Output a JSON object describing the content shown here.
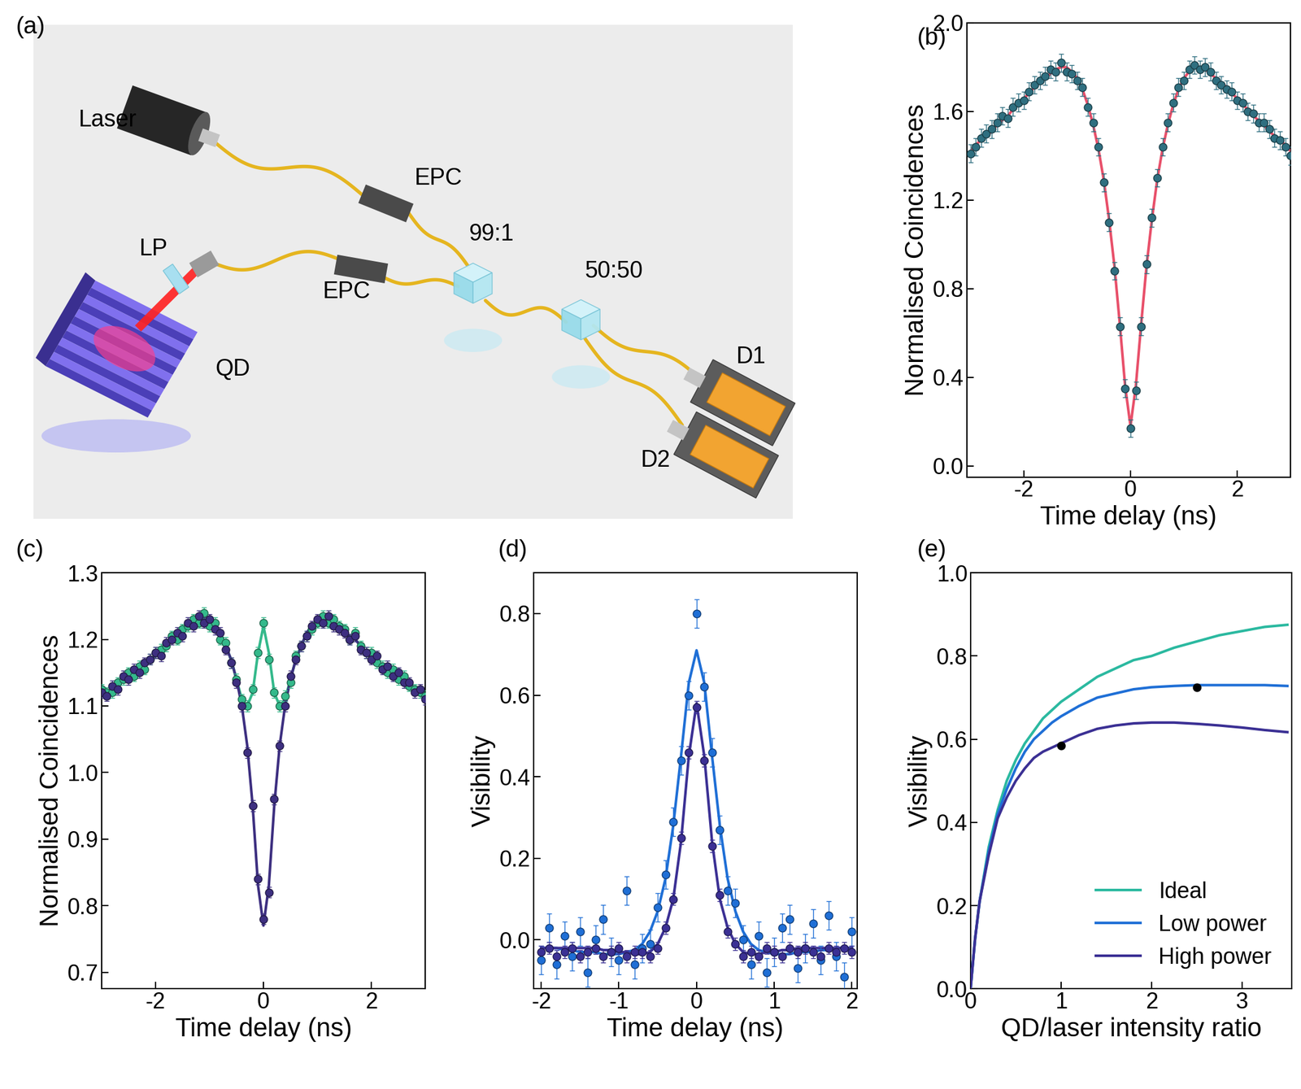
{
  "diagram": {
    "title": "(a)",
    "nodes": [
      {
        "label": "Laser"
      },
      {
        "label": "EPC"
      },
      {
        "label": "EPC"
      },
      {
        "label": "99:1"
      },
      {
        "label": "50:50"
      },
      {
        "label": "D1"
      },
      {
        "label": "D2"
      },
      {
        "label": "LP"
      },
      {
        "label": "QD"
      }
    ]
  },
  "chart_data": [
    {
      "type": "scatter",
      "title": "(b)",
      "x_label": "Time delay (ns)",
      "y_label": "Normalised Coincidences",
      "xlim": [
        -3.07,
        3.0
      ],
      "xticks": [
        -2,
        0,
        2
      ],
      "ylim": [
        -0.05,
        2.0
      ],
      "yticks": [
        0.0,
        0.4,
        0.8,
        1.2,
        1.6,
        2.0
      ],
      "grid": false,
      "x": [
        -3.0,
        -2.9,
        -2.8,
        -2.7,
        -2.6,
        -2.5,
        -2.4,
        -2.3,
        -2.2,
        -2.1,
        -2.0,
        -1.9,
        -1.8,
        -1.7,
        -1.6,
        -1.5,
        -1.4,
        -1.3,
        -1.2,
        -1.1,
        -1.0,
        -0.9,
        -0.8,
        -0.7,
        -0.6,
        -0.5,
        -0.4,
        -0.3,
        -0.2,
        -0.1,
        0.0,
        0.1,
        0.2,
        0.3,
        0.4,
        0.5,
        0.6,
        0.7,
        0.8,
        0.9,
        1.0,
        1.1,
        1.2,
        1.3,
        1.4,
        1.5,
        1.6,
        1.7,
        1.8,
        1.9,
        2.0,
        2.1,
        2.2,
        2.3,
        2.4,
        2.5,
        2.6,
        2.7,
        2.8,
        2.9,
        3.0
      ],
      "series": [
        {
          "type": "scatter",
          "color": "#2f6f80",
          "marker": "o",
          "error": 0.04,
          "values": [
            1.41,
            1.44,
            1.48,
            1.5,
            1.52,
            1.55,
            1.58,
            1.57,
            1.62,
            1.64,
            1.65,
            1.69,
            1.72,
            1.74,
            1.76,
            1.79,
            1.78,
            1.82,
            1.78,
            1.77,
            1.74,
            1.71,
            1.62,
            1.55,
            1.44,
            1.28,
            1.1,
            0.88,
            0.63,
            0.35,
            0.17,
            0.34,
            0.63,
            0.91,
            1.12,
            1.3,
            1.44,
            1.55,
            1.64,
            1.71,
            1.74,
            1.79,
            1.81,
            1.79,
            1.8,
            1.78,
            1.74,
            1.72,
            1.7,
            1.69,
            1.65,
            1.64,
            1.6,
            1.59,
            1.55,
            1.55,
            1.52,
            1.48,
            1.47,
            1.44,
            1.4
          ]
        },
        {
          "type": "line",
          "color": "#e8506a",
          "line_style": "solid",
          "values": [
            1.42,
            1.45,
            1.47,
            1.49,
            1.51,
            1.54,
            1.56,
            1.58,
            1.61,
            1.63,
            1.66,
            1.68,
            1.71,
            1.73,
            1.75,
            1.77,
            1.79,
            1.8,
            1.8,
            1.78,
            1.75,
            1.7,
            1.63,
            1.54,
            1.43,
            1.29,
            1.11,
            0.9,
            0.64,
            0.36,
            0.18,
            0.36,
            0.64,
            0.9,
            1.11,
            1.29,
            1.43,
            1.54,
            1.63,
            1.7,
            1.75,
            1.78,
            1.8,
            1.8,
            1.79,
            1.77,
            1.75,
            1.73,
            1.71,
            1.68,
            1.66,
            1.63,
            1.61,
            1.58,
            1.56,
            1.54,
            1.51,
            1.49,
            1.47,
            1.45,
            1.42
          ]
        }
      ]
    },
    {
      "type": "scatter",
      "title": "(c)",
      "x_label": "Time delay (ns)",
      "y_label": "Normalised Coincidences",
      "xlim": [
        -3.0,
        3.0
      ],
      "xticks": [
        -2,
        0,
        2
      ],
      "ylim": [
        0.675,
        1.3
      ],
      "yticks": [
        0.7,
        0.8,
        0.9,
        1.0,
        1.1,
        1.2,
        1.3
      ],
      "grid": false,
      "x": [
        -3.0,
        -2.9,
        -2.8,
        -2.7,
        -2.6,
        -2.5,
        -2.4,
        -2.3,
        -2.2,
        -2.1,
        -2.0,
        -1.9,
        -1.8,
        -1.7,
        -1.6,
        -1.5,
        -1.4,
        -1.3,
        -1.2,
        -1.1,
        -1.0,
        -0.9,
        -0.8,
        -0.7,
        -0.6,
        -0.5,
        -0.4,
        -0.3,
        -0.2,
        -0.1,
        0.0,
        0.1,
        0.2,
        0.3,
        0.4,
        0.5,
        0.6,
        0.7,
        0.8,
        0.9,
        1.0,
        1.1,
        1.2,
        1.3,
        1.4,
        1.5,
        1.6,
        1.7,
        1.8,
        1.9,
        2.0,
        2.1,
        2.2,
        2.3,
        2.4,
        2.5,
        2.6,
        2.7,
        2.8,
        2.9,
        3.0
      ],
      "series": [
        {
          "type": "scatter",
          "color": "#34b98b",
          "marker": "o",
          "error": 0.008,
          "values": [
            1.125,
            1.12,
            1.12,
            1.135,
            1.14,
            1.15,
            1.145,
            1.16,
            1.155,
            1.17,
            1.18,
            1.185,
            1.19,
            1.205,
            1.2,
            1.215,
            1.22,
            1.23,
            1.225,
            1.24,
            1.22,
            1.225,
            1.2,
            1.195,
            1.165,
            1.14,
            1.11,
            1.1,
            1.125,
            1.18,
            1.225,
            1.17,
            1.12,
            1.1,
            1.115,
            1.135,
            1.175,
            1.19,
            1.205,
            1.215,
            1.225,
            1.235,
            1.225,
            1.23,
            1.22,
            1.215,
            1.2,
            1.21,
            1.19,
            1.18,
            1.18,
            1.165,
            1.16,
            1.15,
            1.155,
            1.14,
            1.145,
            1.13,
            1.125,
            1.12,
            1.115
          ]
        },
        {
          "type": "line",
          "color": "#34b98b",
          "line_style": "solid",
          "values": [
            1.115,
            1.12,
            1.125,
            1.13,
            1.14,
            1.145,
            1.15,
            1.155,
            1.16,
            1.17,
            1.175,
            1.18,
            1.19,
            1.2,
            1.205,
            1.21,
            1.22,
            1.225,
            1.23,
            1.23,
            1.225,
            1.22,
            1.21,
            1.19,
            1.17,
            1.14,
            1.11,
            1.1,
            1.12,
            1.18,
            1.22,
            1.18,
            1.12,
            1.1,
            1.11,
            1.14,
            1.17,
            1.19,
            1.21,
            1.22,
            1.225,
            1.23,
            1.23,
            1.225,
            1.22,
            1.21,
            1.205,
            1.2,
            1.19,
            1.18,
            1.175,
            1.17,
            1.16,
            1.155,
            1.15,
            1.145,
            1.14,
            1.13,
            1.125,
            1.12,
            1.115
          ]
        },
        {
          "type": "scatter",
          "color": "#3d2f80",
          "marker": "o",
          "error": 0.008,
          "values": [
            1.12,
            1.115,
            1.13,
            1.125,
            1.145,
            1.14,
            1.155,
            1.15,
            1.165,
            1.17,
            1.18,
            1.175,
            1.195,
            1.2,
            1.21,
            1.205,
            1.225,
            1.22,
            1.235,
            1.225,
            1.23,
            1.215,
            1.21,
            1.185,
            1.165,
            1.135,
            1.1,
            1.03,
            0.95,
            0.84,
            0.78,
            0.82,
            0.96,
            1.04,
            1.1,
            1.145,
            1.17,
            1.19,
            1.205,
            1.22,
            1.23,
            1.225,
            1.235,
            1.22,
            1.215,
            1.21,
            1.2,
            1.205,
            1.185,
            1.18,
            1.17,
            1.175,
            1.155,
            1.16,
            1.145,
            1.15,
            1.135,
            1.135,
            1.12,
            1.125,
            1.11
          ]
        },
        {
          "type": "line",
          "color": "#3d2f80",
          "line_style": "solid",
          "values": [
            1.115,
            1.12,
            1.125,
            1.13,
            1.14,
            1.145,
            1.15,
            1.155,
            1.16,
            1.17,
            1.175,
            1.18,
            1.19,
            1.2,
            1.205,
            1.21,
            1.22,
            1.225,
            1.23,
            1.23,
            1.225,
            1.22,
            1.21,
            1.19,
            1.17,
            1.14,
            1.1,
            1.04,
            0.95,
            0.83,
            0.77,
            0.83,
            0.95,
            1.04,
            1.1,
            1.14,
            1.17,
            1.19,
            1.21,
            1.22,
            1.225,
            1.23,
            1.23,
            1.225,
            1.22,
            1.21,
            1.205,
            1.2,
            1.19,
            1.18,
            1.175,
            1.17,
            1.16,
            1.155,
            1.15,
            1.145,
            1.14,
            1.13,
            1.125,
            1.12,
            1.115
          ]
        }
      ]
    },
    {
      "type": "scatter",
      "title": "(d)",
      "x_label": "Time delay (ns)",
      "y_label": "Visibility",
      "xlim": [
        -2.1,
        2.07
      ],
      "xticks": [
        -2,
        -1,
        0,
        1,
        2
      ],
      "ylim": [
        -0.12,
        0.9
      ],
      "yticks": [
        0.0,
        0.2,
        0.4,
        0.6,
        0.8
      ],
      "grid": false,
      "x": [
        -2.0,
        -1.9,
        -1.8,
        -1.7,
        -1.6,
        -1.5,
        -1.4,
        -1.3,
        -1.2,
        -1.1,
        -1.0,
        -0.9,
        -0.8,
        -0.7,
        -0.6,
        -0.5,
        -0.4,
        -0.3,
        -0.2,
        -0.1,
        0.0,
        0.1,
        0.2,
        0.3,
        0.4,
        0.5,
        0.6,
        0.7,
        0.8,
        0.9,
        1.0,
        1.1,
        1.2,
        1.3,
        1.4,
        1.5,
        1.6,
        1.7,
        1.8,
        1.9,
        2.0
      ],
      "series": [
        {
          "type": "scatter",
          "color": "#1f6fd6",
          "marker": "o",
          "error": 0.035,
          "values": [
            -0.05,
            0.03,
            -0.06,
            0.01,
            -0.04,
            0.02,
            -0.08,
            0.0,
            0.05,
            -0.03,
            -0.05,
            0.12,
            -0.06,
            -0.02,
            -0.01,
            0.08,
            0.16,
            0.29,
            0.44,
            0.6,
            0.8,
            0.62,
            0.46,
            0.27,
            0.12,
            0.09,
            0.0,
            -0.06,
            0.01,
            -0.08,
            -0.03,
            0.03,
            0.05,
            -0.07,
            -0.02,
            0.04,
            -0.05,
            0.06,
            -0.04,
            -0.09,
            0.02
          ]
        },
        {
          "type": "line",
          "color": "#1f6fd6",
          "line_style": "solid",
          "values": [
            -0.02,
            -0.02,
            -0.02,
            -0.025,
            -0.025,
            -0.03,
            -0.03,
            -0.03,
            -0.035,
            -0.035,
            -0.035,
            -0.03,
            -0.025,
            -0.01,
            0.02,
            0.07,
            0.15,
            0.28,
            0.45,
            0.63,
            0.71,
            0.63,
            0.45,
            0.28,
            0.15,
            0.07,
            0.02,
            -0.01,
            -0.025,
            -0.03,
            -0.035,
            -0.035,
            -0.035,
            -0.03,
            -0.03,
            -0.03,
            -0.025,
            -0.025,
            -0.02,
            -0.02,
            -0.02
          ]
        },
        {
          "type": "scatter",
          "color": "#3b3094",
          "marker": "o",
          "error": 0.015,
          "values": [
            -0.03,
            -0.02,
            -0.04,
            -0.03,
            -0.02,
            -0.04,
            -0.03,
            -0.02,
            -0.04,
            -0.03,
            -0.02,
            -0.04,
            -0.03,
            -0.03,
            -0.04,
            -0.02,
            0.03,
            0.1,
            0.25,
            0.46,
            0.57,
            0.44,
            0.23,
            0.11,
            0.02,
            -0.01,
            -0.04,
            -0.03,
            -0.04,
            -0.02,
            -0.03,
            -0.04,
            -0.02,
            -0.03,
            -0.02,
            -0.03,
            -0.04,
            -0.02,
            -0.03,
            -0.02,
            -0.03
          ]
        },
        {
          "type": "line",
          "color": "#3b3094",
          "line_style": "solid",
          "values": [
            -0.02,
            -0.02,
            -0.02,
            -0.02,
            -0.02,
            -0.02,
            -0.02,
            -0.02,
            -0.025,
            -0.025,
            -0.03,
            -0.03,
            -0.035,
            -0.035,
            -0.03,
            -0.01,
            0.03,
            0.1,
            0.24,
            0.45,
            0.58,
            0.45,
            0.24,
            0.1,
            0.03,
            -0.01,
            -0.03,
            -0.035,
            -0.035,
            -0.03,
            -0.03,
            -0.025,
            -0.025,
            -0.02,
            -0.02,
            -0.02,
            -0.02,
            -0.02,
            -0.02,
            -0.02,
            -0.02
          ]
        }
      ]
    },
    {
      "type": "line",
      "title": "(e)",
      "x_label": "QD/laser intensity ratio",
      "y_label": "Visibility",
      "xlim": [
        0,
        3.55
      ],
      "xticks": [
        0,
        1,
        2,
        3
      ],
      "ylim": [
        0.0,
        1.0
      ],
      "yticks": [
        0.0,
        0.2,
        0.4,
        0.6,
        0.8,
        1.0
      ],
      "grid": false,
      "legend": "lower right",
      "x": [
        0,
        0.05,
        0.1,
        0.2,
        0.3,
        0.4,
        0.5,
        0.6,
        0.7,
        0.8,
        0.9,
        1.0,
        1.2,
        1.4,
        1.6,
        1.8,
        2.0,
        2.25,
        2.5,
        2.75,
        3.0,
        3.25,
        3.5
      ],
      "series": [
        {
          "name": "Ideal",
          "type": "line",
          "color": "#2bb9a0",
          "line_style": "solid",
          "values": [
            0,
            0.12,
            0.21,
            0.34,
            0.43,
            0.5,
            0.55,
            0.59,
            0.62,
            0.65,
            0.67,
            0.69,
            0.72,
            0.75,
            0.77,
            0.79,
            0.8,
            0.82,
            0.835,
            0.85,
            0.86,
            0.87,
            0.875
          ]
        },
        {
          "name": "Low power",
          "type": "line",
          "color": "#1f6fd6",
          "line_style": "solid",
          "values": [
            0,
            0.12,
            0.21,
            0.33,
            0.42,
            0.48,
            0.53,
            0.57,
            0.6,
            0.62,
            0.64,
            0.655,
            0.68,
            0.7,
            0.71,
            0.72,
            0.725,
            0.728,
            0.73,
            0.73,
            0.73,
            0.73,
            0.728
          ]
        },
        {
          "name": "High power",
          "type": "line",
          "color": "#3b3094",
          "line_style": "solid",
          "values": [
            0,
            0.12,
            0.21,
            0.32,
            0.41,
            0.46,
            0.5,
            0.53,
            0.555,
            0.57,
            0.58,
            0.59,
            0.61,
            0.625,
            0.633,
            0.638,
            0.64,
            0.64,
            0.637,
            0.633,
            0.628,
            0.622,
            0.617
          ]
        },
        {
          "type": "scatter",
          "color": "#000000",
          "marker": "o",
          "x": [
            1.0,
            2.5
          ],
          "values": [
            0.585,
            0.725
          ]
        }
      ]
    }
  ]
}
